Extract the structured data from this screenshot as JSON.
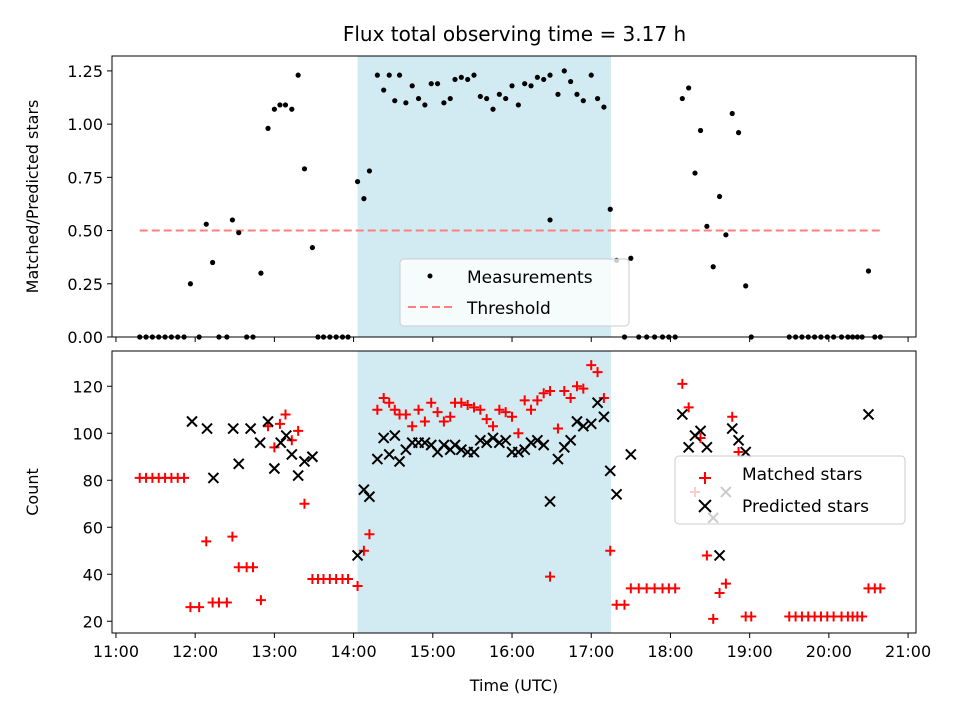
{
  "chart_data": {
    "type": "scatter",
    "title": "Flux total observing time = 3.17 h",
    "xlabel": "Time (UTC)",
    "x_unit": "hours UTC",
    "xlim": [
      10.95,
      21.1
    ],
    "x_ticks": [
      11,
      12,
      13,
      14,
      15,
      16,
      17,
      18,
      19,
      20,
      21
    ],
    "x_tick_labels": [
      "11:00",
      "12:00",
      "13:00",
      "14:00",
      "15:00",
      "16:00",
      "17:00",
      "18:00",
      "19:00",
      "20:00",
      "21:00"
    ],
    "observing_window": [
      14.05,
      17.25
    ],
    "colors": {
      "window": "#add8e6",
      "measurements": "#000000",
      "threshold": "#ff7f7f",
      "matched": "#ff0000",
      "predicted": "#000000"
    },
    "panels": {
      "ratio": {
        "ylabel": "Matched/Predicted stars",
        "ylim": [
          0,
          1.32
        ],
        "y_ticks": [
          0,
          0.25,
          0.5,
          0.75,
          1.0,
          1.25
        ],
        "y_tick_labels": [
          "0.00",
          "0.25",
          "0.50",
          "0.75",
          "1.00",
          "1.25"
        ],
        "threshold": {
          "value": 0.5,
          "x_range": [
            11.3,
            20.65
          ]
        },
        "legend": {
          "placement": "lower-center",
          "measurements_label": "Measurements",
          "threshold_label": "Threshold"
        },
        "measurements": [
          [
            11.3,
            0
          ],
          [
            11.38,
            0
          ],
          [
            11.46,
            0
          ],
          [
            11.54,
            0
          ],
          [
            11.62,
            0
          ],
          [
            11.7,
            0
          ],
          [
            11.78,
            0
          ],
          [
            11.86,
            0
          ],
          [
            11.94,
            0.25
          ],
          [
            12.05,
            0
          ],
          [
            12.14,
            0.53
          ],
          [
            12.22,
            0.35
          ],
          [
            12.3,
            0
          ],
          [
            12.4,
            0
          ],
          [
            12.47,
            0.55
          ],
          [
            12.55,
            0.49
          ],
          [
            12.65,
            0
          ],
          [
            12.73,
            0
          ],
          [
            12.83,
            0.3
          ],
          [
            12.92,
            0.98
          ],
          [
            13.0,
            1.07
          ],
          [
            13.07,
            1.09
          ],
          [
            13.14,
            1.09
          ],
          [
            13.22,
            1.07
          ],
          [
            13.3,
            1.23
          ],
          [
            13.38,
            0.79
          ],
          [
            13.48,
            0.42
          ],
          [
            13.55,
            0
          ],
          [
            13.62,
            0
          ],
          [
            13.7,
            0
          ],
          [
            13.78,
            0
          ],
          [
            13.86,
            0
          ],
          [
            13.93,
            0
          ],
          [
            14.05,
            0.73
          ],
          [
            14.13,
            0.65
          ],
          [
            14.2,
            0.78
          ],
          [
            14.3,
            1.23
          ],
          [
            14.38,
            1.16
          ],
          [
            14.45,
            1.23
          ],
          [
            14.52,
            1.11
          ],
          [
            14.58,
            1.23
          ],
          [
            14.66,
            1.1
          ],
          [
            14.74,
            1.18
          ],
          [
            14.82,
            1.12
          ],
          [
            14.9,
            1.09
          ],
          [
            14.98,
            1.19
          ],
          [
            15.06,
            1.19
          ],
          [
            15.14,
            1.1
          ],
          [
            15.22,
            1.12
          ],
          [
            15.28,
            1.21
          ],
          [
            15.36,
            1.22
          ],
          [
            15.44,
            1.21
          ],
          [
            15.52,
            1.23
          ],
          [
            15.6,
            1.13
          ],
          [
            15.68,
            1.12
          ],
          [
            15.76,
            1.07
          ],
          [
            15.84,
            1.14
          ],
          [
            15.92,
            1.12
          ],
          [
            16.0,
            1.18
          ],
          [
            16.08,
            1.09
          ],
          [
            16.16,
            1.19
          ],
          [
            16.24,
            1.18
          ],
          [
            16.32,
            1.22
          ],
          [
            16.4,
            1.21
          ],
          [
            16.48,
            1.23
          ],
          [
            16.48,
            0.55
          ],
          [
            16.58,
            1.14
          ],
          [
            16.66,
            1.25
          ],
          [
            16.74,
            1.2
          ],
          [
            16.82,
            1.14
          ],
          [
            16.9,
            1.11
          ],
          [
            17.0,
            1.23
          ],
          [
            17.08,
            1.12
          ],
          [
            17.16,
            1.08
          ],
          [
            17.24,
            0.6
          ],
          [
            17.32,
            0.36
          ],
          [
            17.42,
            0
          ],
          [
            17.5,
            0.37
          ],
          [
            17.6,
            0
          ],
          [
            17.7,
            0
          ],
          [
            17.8,
            0
          ],
          [
            17.9,
            0
          ],
          [
            17.98,
            0
          ],
          [
            18.06,
            0
          ],
          [
            18.15,
            1.12
          ],
          [
            18.23,
            1.17
          ],
          [
            18.31,
            0.77
          ],
          [
            18.38,
            0.97
          ],
          [
            18.46,
            0.52
          ],
          [
            18.54,
            0.33
          ],
          [
            18.62,
            0.66
          ],
          [
            18.7,
            0.48
          ],
          [
            18.78,
            1.05
          ],
          [
            18.86,
            0.96
          ],
          [
            18.95,
            0.24
          ],
          [
            19.02,
            0
          ],
          [
            19.5,
            0
          ],
          [
            19.58,
            0
          ],
          [
            19.66,
            0
          ],
          [
            19.74,
            0
          ],
          [
            19.82,
            0
          ],
          [
            19.9,
            0
          ],
          [
            19.98,
            0
          ],
          [
            20.06,
            0
          ],
          [
            20.16,
            0
          ],
          [
            20.24,
            0
          ],
          [
            20.3,
            0
          ],
          [
            20.36,
            0
          ],
          [
            20.42,
            0
          ],
          [
            20.5,
            0.31
          ],
          [
            20.58,
            0
          ],
          [
            20.65,
            0
          ]
        ]
      },
      "count": {
        "ylabel": "Count",
        "ylim": [
          15,
          135
        ],
        "y_ticks": [
          20,
          40,
          60,
          80,
          100,
          120
        ],
        "y_tick_labels": [
          "20",
          "40",
          "60",
          "80",
          "100",
          "120"
        ],
        "legend": {
          "placement": "center-right",
          "matched_label": "Matched stars",
          "predicted_label": "Predicted stars"
        },
        "matched": [
          [
            11.3,
            81
          ],
          [
            11.38,
            81
          ],
          [
            11.46,
            81
          ],
          [
            11.54,
            81
          ],
          [
            11.62,
            81
          ],
          [
            11.7,
            81
          ],
          [
            11.78,
            81
          ],
          [
            11.86,
            81
          ],
          [
            11.94,
            26
          ],
          [
            12.05,
            26
          ],
          [
            12.14,
            54
          ],
          [
            12.22,
            28
          ],
          [
            12.3,
            28
          ],
          [
            12.4,
            28
          ],
          [
            12.47,
            56
          ],
          [
            12.55,
            43
          ],
          [
            12.65,
            43
          ],
          [
            12.73,
            43
          ],
          [
            12.83,
            29
          ],
          [
            12.92,
            103
          ],
          [
            13.0,
            94
          ],
          [
            13.07,
            104
          ],
          [
            13.14,
            108
          ],
          [
            13.22,
            97
          ],
          [
            13.3,
            101
          ],
          [
            13.38,
            70
          ],
          [
            13.48,
            38
          ],
          [
            13.55,
            38
          ],
          [
            13.62,
            38
          ],
          [
            13.7,
            38
          ],
          [
            13.78,
            38
          ],
          [
            13.86,
            38
          ],
          [
            13.93,
            38
          ],
          [
            14.05,
            35
          ],
          [
            14.13,
            50
          ],
          [
            14.2,
            57
          ],
          [
            14.3,
            110
          ],
          [
            14.38,
            115
          ],
          [
            14.45,
            113
          ],
          [
            14.52,
            110
          ],
          [
            14.58,
            108
          ],
          [
            14.66,
            108
          ],
          [
            14.74,
            103
          ],
          [
            14.82,
            110
          ],
          [
            14.9,
            105
          ],
          [
            14.98,
            113
          ],
          [
            15.06,
            109
          ],
          [
            15.14,
            105
          ],
          [
            15.22,
            107
          ],
          [
            15.28,
            113
          ],
          [
            15.36,
            113
          ],
          [
            15.44,
            112
          ],
          [
            15.52,
            111
          ],
          [
            15.6,
            110
          ],
          [
            15.68,
            106
          ],
          [
            15.76,
            103
          ],
          [
            15.84,
            110
          ],
          [
            15.92,
            109
          ],
          [
            16.0,
            107
          ],
          [
            16.08,
            100
          ],
          [
            16.16,
            114
          ],
          [
            16.24,
            110
          ],
          [
            16.32,
            114
          ],
          [
            16.4,
            117
          ],
          [
            16.48,
            118
          ],
          [
            16.48,
            39
          ],
          [
            16.58,
            102
          ],
          [
            16.66,
            118
          ],
          [
            16.74,
            115
          ],
          [
            16.82,
            120
          ],
          [
            16.9,
            119
          ],
          [
            17.0,
            129
          ],
          [
            17.08,
            126
          ],
          [
            17.16,
            115
          ],
          [
            17.24,
            50
          ],
          [
            17.32,
            27
          ],
          [
            17.42,
            27
          ],
          [
            17.5,
            34
          ],
          [
            17.6,
            34
          ],
          [
            17.7,
            34
          ],
          [
            17.8,
            34
          ],
          [
            17.9,
            34
          ],
          [
            17.98,
            34
          ],
          [
            18.06,
            34
          ],
          [
            18.15,
            121
          ],
          [
            18.23,
            111
          ],
          [
            18.31,
            75
          ],
          [
            18.38,
            98
          ],
          [
            18.46,
            48
          ],
          [
            18.54,
            21
          ],
          [
            18.62,
            32
          ],
          [
            18.7,
            36
          ],
          [
            18.78,
            107
          ],
          [
            18.86,
            92
          ],
          [
            18.95,
            22
          ],
          [
            19.02,
            22
          ],
          [
            19.5,
            22
          ],
          [
            19.58,
            22
          ],
          [
            19.66,
            22
          ],
          [
            19.74,
            22
          ],
          [
            19.82,
            22
          ],
          [
            19.9,
            22
          ],
          [
            19.98,
            22
          ],
          [
            20.06,
            22
          ],
          [
            20.16,
            22
          ],
          [
            20.24,
            22
          ],
          [
            20.3,
            22
          ],
          [
            20.36,
            22
          ],
          [
            20.42,
            22
          ],
          [
            20.5,
            34
          ],
          [
            20.58,
            34
          ],
          [
            20.65,
            34
          ]
        ],
        "predicted": [
          [
            11.96,
            105
          ],
          [
            12.15,
            102
          ],
          [
            12.23,
            81
          ],
          [
            12.48,
            102
          ],
          [
            12.55,
            87
          ],
          [
            12.7,
            102
          ],
          [
            12.82,
            96
          ],
          [
            12.92,
            105
          ],
          [
            13.0,
            85
          ],
          [
            13.08,
            96
          ],
          [
            13.15,
            99
          ],
          [
            13.22,
            91
          ],
          [
            13.3,
            82
          ],
          [
            13.38,
            88
          ],
          [
            13.48,
            90
          ],
          [
            14.05,
            48
          ],
          [
            14.13,
            76
          ],
          [
            14.2,
            73
          ],
          [
            14.3,
            89
          ],
          [
            14.38,
            98
          ],
          [
            14.45,
            91
          ],
          [
            14.52,
            99
          ],
          [
            14.58,
            88
          ],
          [
            14.66,
            93
          ],
          [
            14.74,
            96
          ],
          [
            14.82,
            96
          ],
          [
            14.9,
            96
          ],
          [
            14.98,
            95
          ],
          [
            15.06,
            92
          ],
          [
            15.14,
            95
          ],
          [
            15.22,
            93
          ],
          [
            15.28,
            95
          ],
          [
            15.36,
            93
          ],
          [
            15.44,
            92
          ],
          [
            15.52,
            92
          ],
          [
            15.6,
            97
          ],
          [
            15.68,
            96
          ],
          [
            15.76,
            98
          ],
          [
            15.84,
            96
          ],
          [
            15.92,
            97
          ],
          [
            16.0,
            92
          ],
          [
            16.08,
            92
          ],
          [
            16.16,
            93
          ],
          [
            16.24,
            96
          ],
          [
            16.32,
            97
          ],
          [
            16.4,
            95
          ],
          [
            16.48,
            71
          ],
          [
            16.58,
            89
          ],
          [
            16.66,
            94
          ],
          [
            16.74,
            97
          ],
          [
            16.82,
            105
          ],
          [
            16.9,
            103
          ],
          [
            17.0,
            104
          ],
          [
            17.08,
            113
          ],
          [
            17.16,
            107
          ],
          [
            17.24,
            84
          ],
          [
            17.32,
            74
          ],
          [
            17.5,
            91
          ],
          [
            18.15,
            108
          ],
          [
            18.23,
            94
          ],
          [
            18.31,
            99
          ],
          [
            18.38,
            101
          ],
          [
            18.46,
            94
          ],
          [
            18.54,
            64
          ],
          [
            18.62,
            48
          ],
          [
            18.7,
            75
          ],
          [
            18.78,
            102
          ],
          [
            18.86,
            97
          ],
          [
            18.95,
            92
          ],
          [
            20.5,
            108
          ]
        ]
      }
    }
  }
}
